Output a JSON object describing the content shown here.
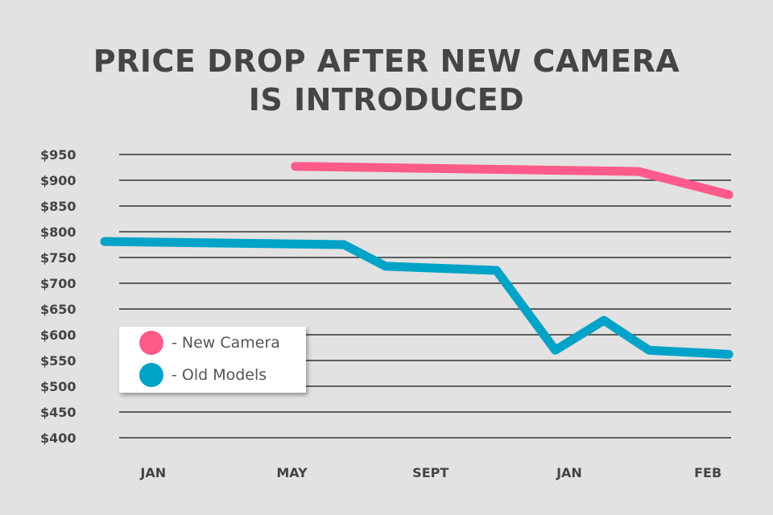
{
  "chart_data": {
    "type": "line",
    "title_lines": [
      "PRICE DROP AFTER NEW CAMERA",
      "IS INTRODUCED"
    ],
    "xlabel": "",
    "ylabel": "",
    "ylim": [
      400,
      950
    ],
    "xlim": [
      -1.4,
      16.6
    ],
    "y_ticks": [
      950,
      900,
      850,
      800,
      750,
      700,
      650,
      600,
      550,
      500,
      450,
      400
    ],
    "y_tick_labels": [
      "$950",
      "$900",
      "$850",
      "$800",
      "$750",
      "$700",
      "$650",
      "$600",
      "$550",
      "$500",
      "$450",
      "$400"
    ],
    "x_ticks": [
      0,
      4,
      8,
      12,
      16
    ],
    "x_tick_labels": [
      "JAN",
      "MAY",
      "SEPT",
      "JAN",
      "FEB"
    ],
    "grid": true,
    "legend_position": "bottom-left",
    "series": [
      {
        "name": "- New Camera",
        "color": "#ff5b8a",
        "points": [
          [
            4.1,
            927
          ],
          [
            14.0,
            917
          ],
          [
            16.6,
            872
          ]
        ]
      },
      {
        "name": "- Old Models",
        "color": "#00a3c8",
        "points": [
          [
            -1.4,
            781
          ],
          [
            5.5,
            775
          ],
          [
            6.7,
            733
          ],
          [
            9.9,
            725
          ],
          [
            11.6,
            570
          ],
          [
            13.0,
            628
          ],
          [
            14.3,
            570
          ],
          [
            16.6,
            562
          ]
        ]
      }
    ]
  }
}
